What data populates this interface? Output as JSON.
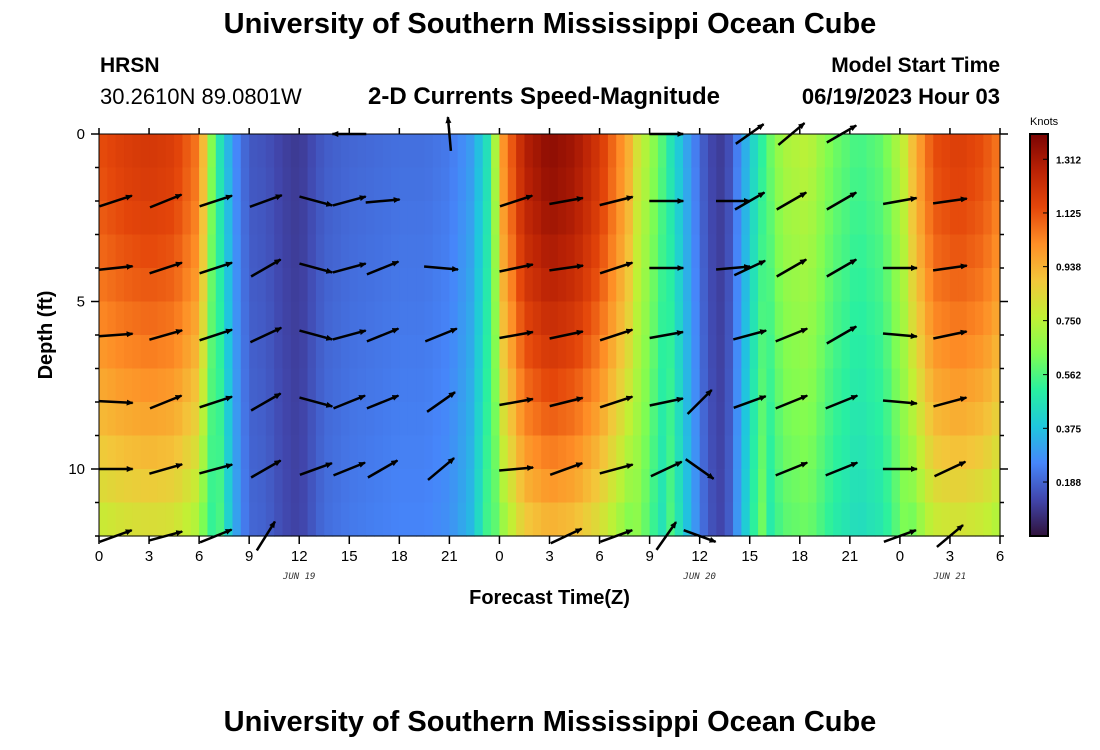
{
  "header": {
    "title": "University of Southern Mississippi Ocean Cube",
    "station_name": "HRSN",
    "station_coords": "30.2610N  89.0801W",
    "variable_title": "2-D Currents Speed-Magnitude",
    "model_label": "Model Start Time",
    "model_time": "06/19/2023 Hour 03"
  },
  "footer": {
    "title": "University of Southern Mississippi Ocean Cube"
  },
  "chart_data": {
    "type": "heatmap",
    "xlabel": "Forecast Time(Z)",
    "ylabel": "Depth (ft)",
    "x_range_hours": [
      0,
      54
    ],
    "x_tick_labels": [
      "0",
      "3",
      "6",
      "9",
      "12",
      "15",
      "18",
      "21",
      "0",
      "3",
      "6",
      "9",
      "12",
      "15",
      "18",
      "21",
      "0",
      "3",
      "6"
    ],
    "day_labels": [
      {
        "label": "JUN 19",
        "at_hour": 12
      },
      {
        "label": "JUN 20",
        "at_hour": 36
      },
      {
        "label": "JUN 21",
        "at_hour": 51
      }
    ],
    "y_range": [
      0,
      12
    ],
    "y_inverted": true,
    "y_ticks": [
      0,
      5,
      10
    ],
    "colorbar": {
      "unit": "Knots",
      "min": 0.0,
      "max": 1.4,
      "labels": [
        "1.312",
        "1.125",
        "0.938",
        "0.750",
        "0.562",
        "0.375",
        "0.188"
      ],
      "colors": [
        "#30123b",
        "#4146ac",
        "#4686fa",
        "#1fc7dd",
        "#29f0a0",
        "#7ffd52",
        "#c2f034",
        "#f3c63a",
        "#fe8e26",
        "#e4460a",
        "#ba2205",
        "#7a0403"
      ]
    },
    "speed_profile_time": [
      0,
      1.5,
      3,
      4.5,
      6,
      6.6,
      7.2,
      8.0,
      9,
      10,
      11,
      12,
      13.5,
      15,
      16.5,
      18,
      19.5,
      21,
      22.2,
      23.2,
      24.2,
      25.5,
      27,
      28.5,
      30,
      31.5,
      33,
      34.2,
      35.4,
      36.5,
      37.5,
      38.5,
      39.5,
      41,
      42.5,
      44,
      45.5,
      47,
      48.5,
      50,
      51.5,
      53,
      54
    ],
    "speed_profile_values": [
      1.08,
      1.12,
      1.14,
      1.12,
      1.0,
      0.7,
      0.5,
      0.3,
      0.17,
      0.16,
      0.12,
      0.1,
      0.18,
      0.2,
      0.21,
      0.22,
      0.22,
      0.24,
      0.3,
      0.45,
      0.95,
      1.22,
      1.3,
      1.26,
      1.14,
      0.94,
      0.7,
      0.5,
      0.3,
      0.14,
      0.1,
      0.3,
      0.5,
      0.72,
      0.76,
      0.62,
      0.55,
      0.6,
      0.82,
      1.08,
      1.12,
      1.08,
      1.0
    ],
    "vector_depths_ft": [
      0,
      2,
      4,
      6,
      8,
      10,
      12
    ],
    "vectors": [
      {
        "hour": 1.0,
        "depths": [
          null,
          18,
          6,
          4,
          -3,
          0,
          20
        ]
      },
      {
        "hour": 4.0,
        "depths": [
          null,
          22,
          18,
          16,
          22,
          16,
          15
        ]
      },
      {
        "hour": 7.0,
        "depths": [
          null,
          18,
          18,
          18,
          18,
          15,
          22
        ]
      },
      {
        "hour": 10.0,
        "depths": [
          null,
          20,
          30,
          25,
          30,
          30,
          58
        ]
      },
      {
        "hour": 13.0,
        "depths": [
          null,
          -15,
          -15,
          -15,
          -15,
          20,
          null
        ]
      },
      {
        "hour": 15.0,
        "depths": [
          -180,
          15,
          15,
          15,
          22,
          22,
          null
        ]
      },
      {
        "hour": 17.0,
        "depths": [
          null,
          5,
          22,
          22,
          22,
          30,
          null
        ]
      },
      {
        "hour": 20.5,
        "depths": [
          null,
          null,
          -5,
          22,
          35,
          40,
          null
        ]
      },
      {
        "hour": 21.0,
        "depths": [
          95,
          null,
          null,
          null,
          null,
          null,
          null
        ]
      },
      {
        "hour": 25.0,
        "depths": [
          null,
          18,
          12,
          10,
          10,
          5,
          null
        ]
      },
      {
        "hour": 28.0,
        "depths": [
          null,
          10,
          8,
          12,
          14,
          20,
          25
        ]
      },
      {
        "hour": 31.0,
        "depths": [
          null,
          14,
          18,
          18,
          18,
          15,
          20
        ]
      },
      {
        "hour": 34.0,
        "depths": [
          0,
          0,
          0,
          10,
          12,
          25,
          55
        ]
      },
      {
        "hour": 36.0,
        "depths": [
          null,
          null,
          null,
          null,
          45,
          -35,
          -20
        ]
      },
      {
        "hour": 38.0,
        "depths": [
          null,
          0,
          5,
          null,
          null,
          null,
          null
        ]
      },
      {
        "hour": 39.0,
        "depths": [
          35,
          30,
          25,
          15,
          20,
          null,
          null
        ]
      },
      {
        "hour": 41.5,
        "depths": [
          40,
          30,
          30,
          22,
          22,
          22,
          null
        ]
      },
      {
        "hour": 44.5,
        "depths": [
          30,
          30,
          30,
          30,
          22,
          22,
          null
        ]
      },
      {
        "hour": 48.0,
        "depths": [
          null,
          10,
          0,
          -5,
          -5,
          0,
          20
        ]
      },
      {
        "hour": 51.0,
        "depths": [
          null,
          8,
          8,
          12,
          15,
          25,
          40
        ]
      }
    ]
  }
}
